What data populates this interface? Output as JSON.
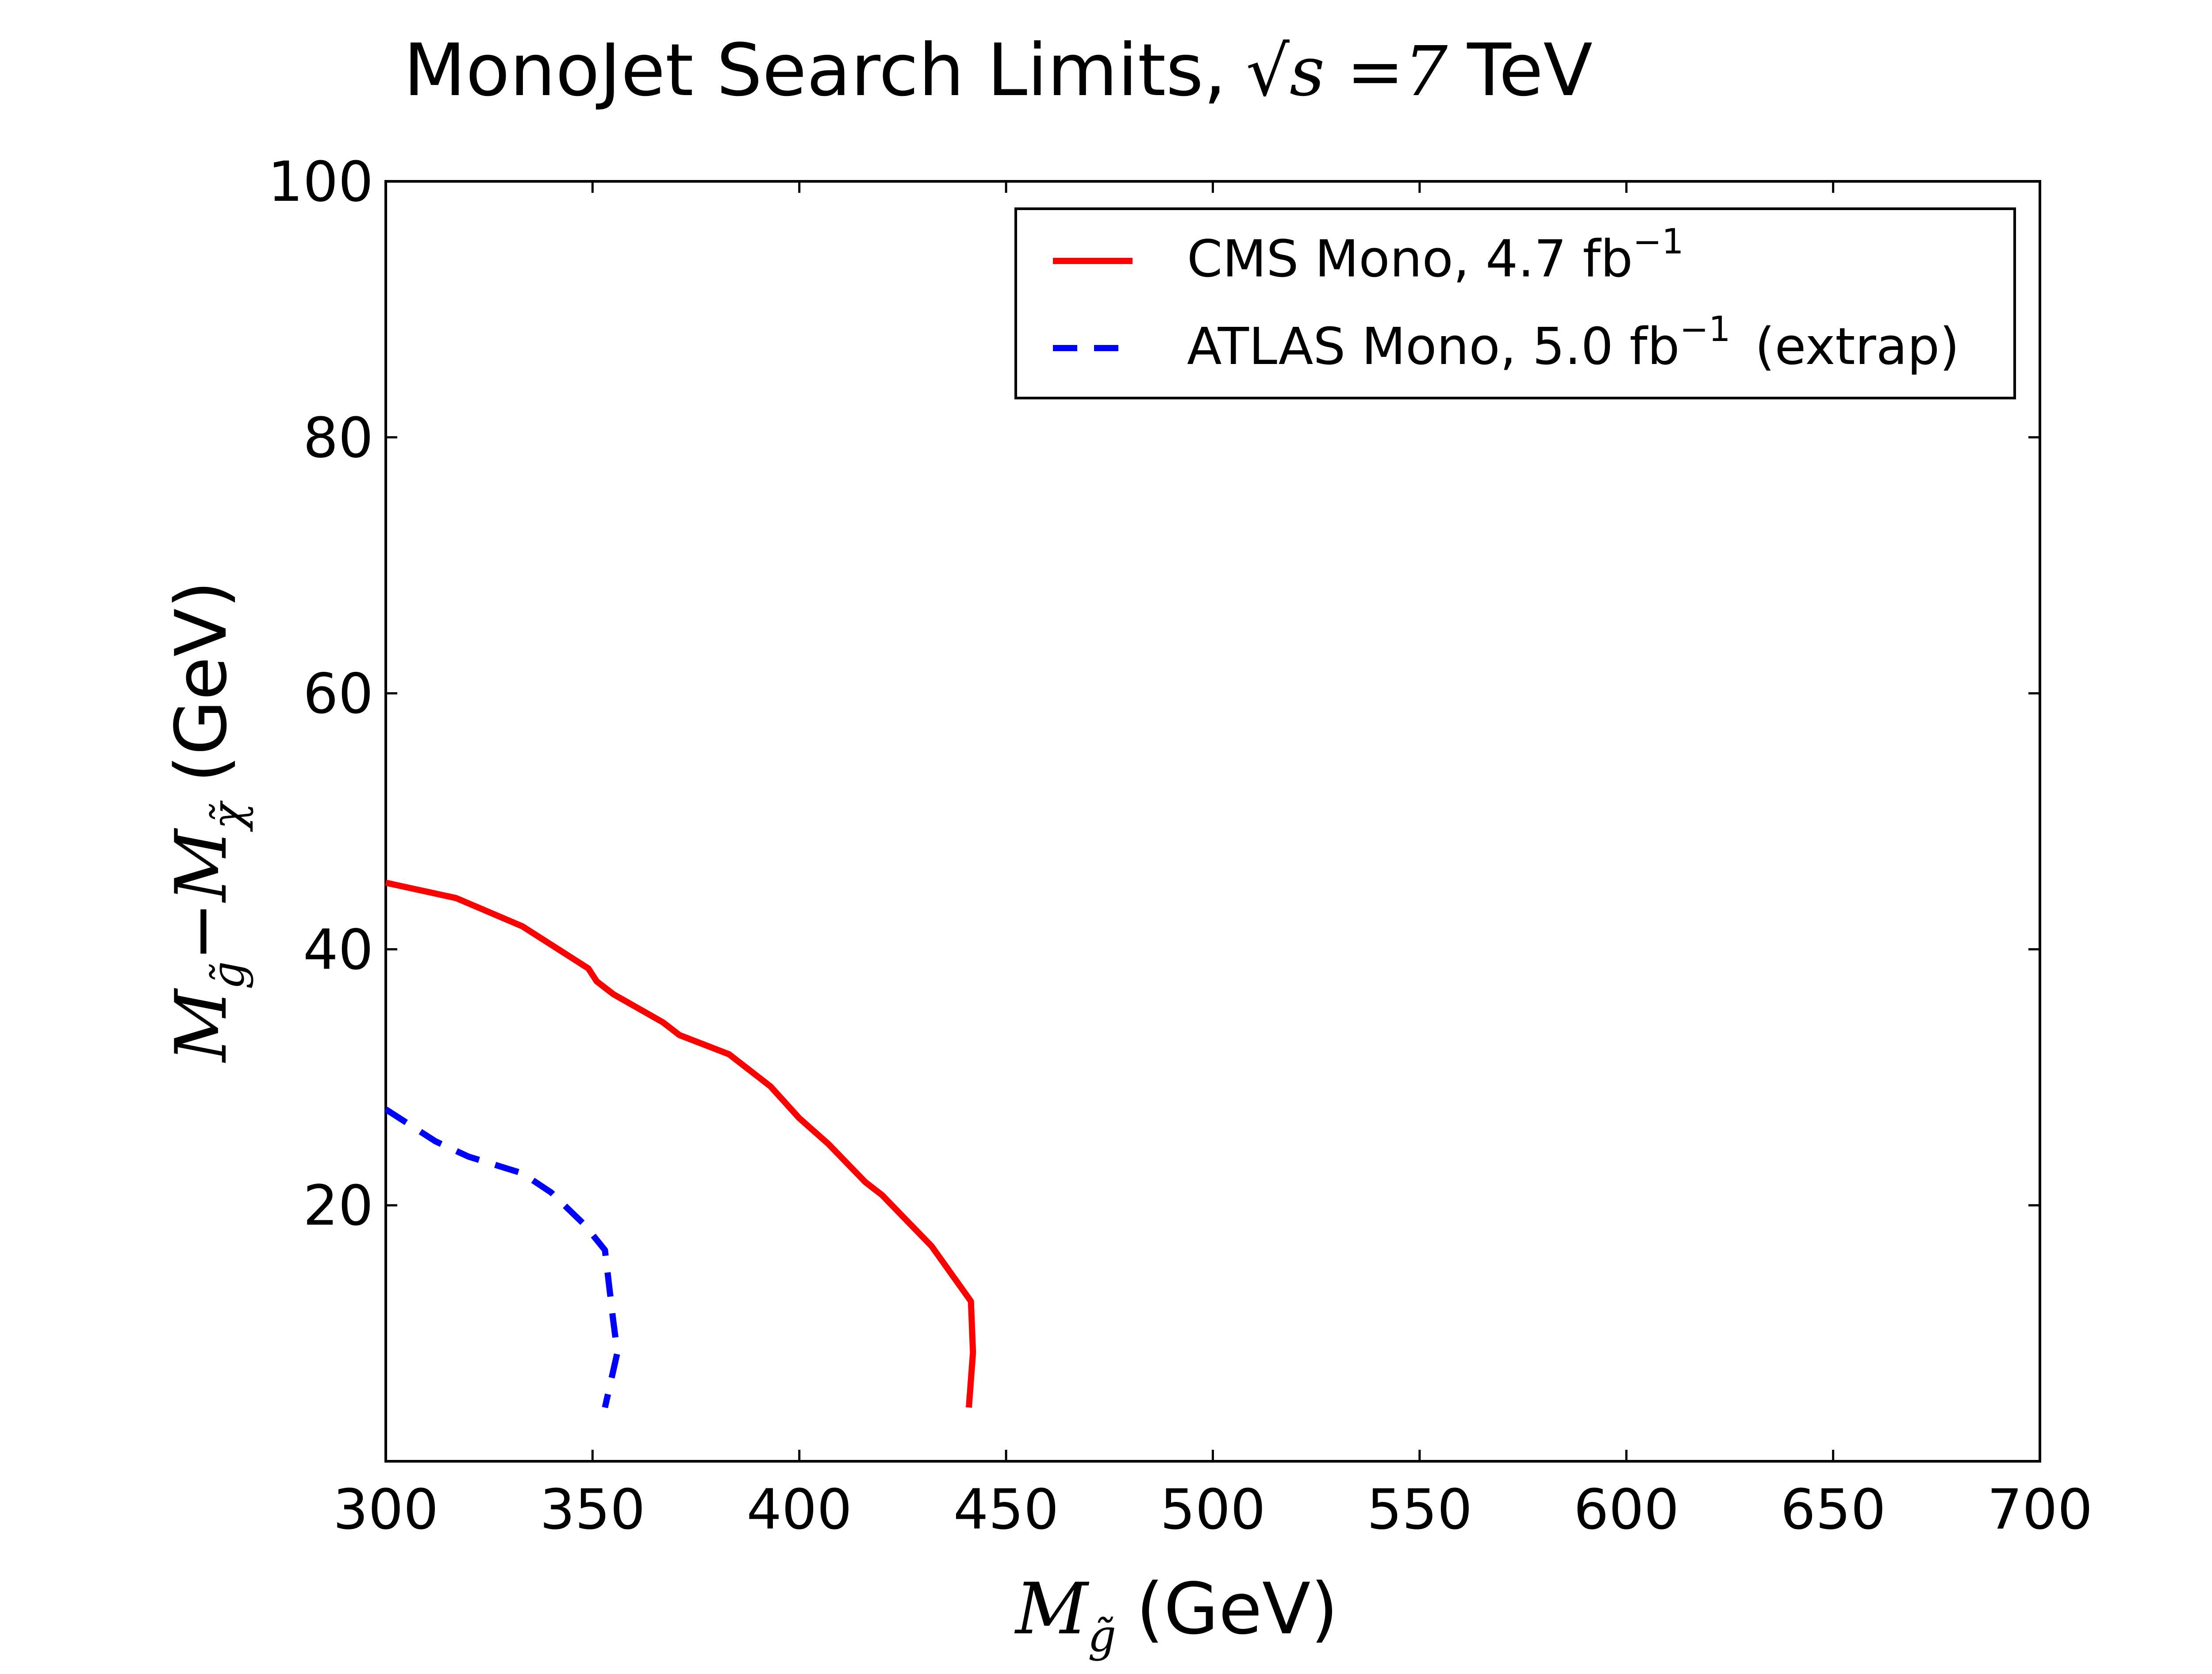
{
  "chart_data": {
    "type": "line",
    "title": "MonoJet Search Limits, √s =7 TeV",
    "title_parts": {
      "prefix": "MonoJet Search Limits,",
      "math": "√s =7",
      "suffix": "TeV"
    },
    "xlabel": "M_g̃ (GeV)",
    "xlabel_parts": {
      "symbol": "M",
      "subscript": "g̃",
      "unit": "(GeV)"
    },
    "ylabel": "M_g̃ − M_χ̃ (GeV)",
    "ylabel_parts": {
      "symbol1": "M",
      "sub1": "g̃",
      "minus": "−",
      "symbol2": "M",
      "sub2": "χ̃",
      "unit": "(GeV)"
    },
    "xlim": [
      300,
      700
    ],
    "ylim": [
      0,
      100
    ],
    "xticks": [
      300,
      350,
      400,
      450,
      500,
      550,
      600,
      650,
      700
    ],
    "yticks": [
      20,
      40,
      60,
      80,
      100
    ],
    "grid": false,
    "legend_position": "top-right",
    "series": [
      {
        "name": "CMS Mono, 4.7 fb⁻¹",
        "label_text": "CMS Mono, 4.7 fb",
        "label_sup": "−1",
        "label_suffix": "",
        "style": "solid",
        "color": "#ff0000",
        "x": [
          300,
          317,
          333,
          349,
          351,
          355,
          367,
          371,
          383,
          393,
          400,
          407,
          416,
          420,
          432,
          441.5,
          442,
          441
        ],
        "y": [
          45.2,
          44,
          41.8,
          38.5,
          37.5,
          36.5,
          34.3,
          33.3,
          31.8,
          29.3,
          26.8,
          24.8,
          21.8,
          20.8,
          16.8,
          12.5,
          8.5,
          4.2
        ]
      },
      {
        "name": "ATLAS Mono, 5.0 fb⁻¹ (extrap)",
        "label_text": "ATLAS Mono, 5.0 fb",
        "label_sup": "−1",
        "label_suffix": "(extrap)",
        "style": "dashed",
        "color": "#0000ff",
        "x": [
          300,
          312,
          320,
          333,
          340,
          348,
          353,
          355,
          356,
          353
        ],
        "y": [
          27.5,
          25,
          23.8,
          22.5,
          21,
          18.5,
          16.5,
          11,
          8.5,
          4.2
        ]
      }
    ]
  }
}
